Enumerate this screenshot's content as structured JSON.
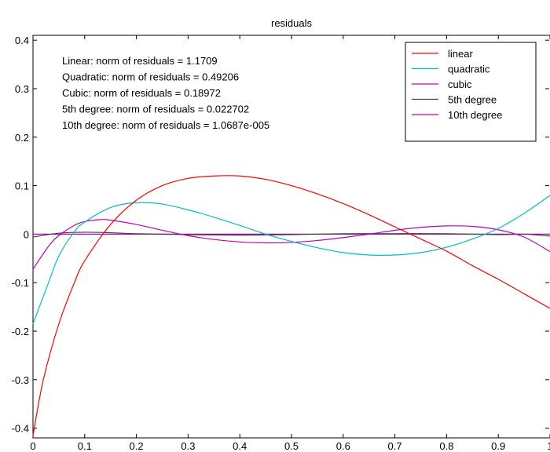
{
  "chart_data": {
    "type": "line",
    "title": "residuals",
    "xlim": [
      0,
      1
    ],
    "ylim": [
      -0.42,
      0.41
    ],
    "xticks": [
      0,
      0.1,
      0.2,
      0.3,
      0.4,
      0.5,
      0.6,
      0.7,
      0.8,
      0.9,
      1
    ],
    "xtick_labels": [
      "0",
      "0.1",
      "0.2",
      "0.3",
      "0.4",
      "0.5",
      "0.6",
      "0.7",
      "0.8",
      "0.9",
      "1"
    ],
    "yticks": [
      -0.4,
      -0.3,
      -0.2,
      -0.1,
      0,
      0.1,
      0.2,
      0.3,
      0.4
    ],
    "ytick_labels": [
      "-0.4",
      "-0.3",
      "-0.2",
      "-0.1",
      "0",
      "0.1",
      "0.2",
      "0.3",
      "0.4"
    ],
    "grid": false,
    "legend_position": "top-right",
    "annotations": [
      "Linear: norm of residuals = 1.1709",
      "Quadratic: norm of residuals = 0.49206",
      "Cubic: norm of residuals = 0.18972",
      "5th degree: norm of residuals = 0.022702",
      "10th degree: norm of residuals = 1.0687e-005"
    ],
    "series": [
      {
        "name": "linear",
        "color": "#ff0000",
        "x": [
          0,
          0.02,
          0.05,
          0.08,
          0.1,
          0.15,
          0.2,
          0.25,
          0.3,
          0.35,
          0.4,
          0.45,
          0.5,
          0.55,
          0.6,
          0.65,
          0.7,
          0.75,
          0.8,
          0.85,
          0.9,
          0.95,
          1
        ],
        "y": [
          -0.415,
          -0.3,
          -0.185,
          -0.1,
          -0.055,
          0.02,
          0.07,
          0.1,
          0.115,
          0.12,
          0.12,
          0.113,
          0.1,
          0.083,
          0.063,
          0.04,
          0.015,
          -0.01,
          -0.035,
          -0.065,
          -0.093,
          -0.123,
          -0.153
        ]
      },
      {
        "name": "quadratic",
        "color": "#00bfbf",
        "x": [
          0,
          0.03,
          0.05,
          0.08,
          0.1,
          0.15,
          0.2,
          0.25,
          0.3,
          0.35,
          0.4,
          0.45,
          0.5,
          0.55,
          0.6,
          0.65,
          0.7,
          0.75,
          0.8,
          0.85,
          0.9,
          0.95,
          1
        ],
        "y": [
          -0.185,
          -0.1,
          -0.045,
          0.005,
          0.025,
          0.055,
          0.065,
          0.062,
          0.05,
          0.035,
          0.018,
          0,
          -0.015,
          -0.028,
          -0.038,
          -0.043,
          -0.043,
          -0.038,
          -0.027,
          -0.01,
          0.012,
          0.043,
          0.08
        ]
      },
      {
        "name": "cubic",
        "color": "#bf00bf",
        "x": [
          0,
          0.03,
          0.05,
          0.08,
          0.1,
          0.13,
          0.15,
          0.2,
          0.25,
          0.3,
          0.35,
          0.4,
          0.45,
          0.5,
          0.55,
          0.6,
          0.65,
          0.7,
          0.75,
          0.8,
          0.85,
          0.9,
          0.95,
          1
        ],
        "y": [
          -0.072,
          -0.025,
          -0.003,
          0.018,
          0.026,
          0.03,
          0.029,
          0.02,
          0.008,
          -0.003,
          -0.011,
          -0.016,
          -0.018,
          -0.017,
          -0.013,
          -0.007,
          0,
          0.008,
          0.014,
          0.017,
          0.016,
          0.009,
          -0.006,
          -0.036
        ]
      },
      {
        "name": "5th degree",
        "color": "#404040",
        "x": [
          0,
          0.05,
          0.1,
          0.15,
          0.2,
          0.3,
          0.4,
          0.5,
          0.6,
          0.7,
          0.8,
          0.9,
          0.95,
          1
        ],
        "y": [
          -0.006,
          0.002,
          0.004,
          0.003,
          0.001,
          -0.001,
          -0.002,
          -0.001,
          0.001,
          0.001,
          0.001,
          -0.001,
          0,
          -0.004
        ]
      },
      {
        "name": "10th degree",
        "color": "#bf00bf",
        "x": [
          0,
          0.1,
          0.2,
          0.3,
          0.4,
          0.5,
          0.6,
          0.7,
          0.8,
          0.9,
          1
        ],
        "y": [
          0,
          0,
          0,
          0,
          0,
          0,
          0,
          0,
          0,
          0,
          0
        ]
      }
    ]
  }
}
